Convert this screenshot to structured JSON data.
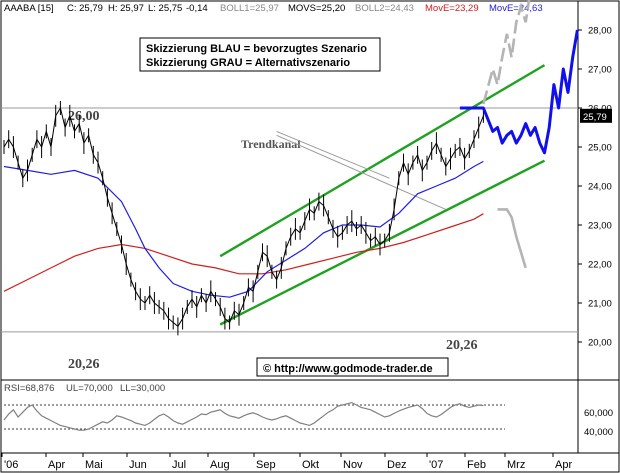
{
  "header": {
    "symbol": "AAABA [15]",
    "c": "C: 25,79",
    "h": "H: 25,97",
    "l": "L: 25,75",
    "chg": "-0,14",
    "boll1": "BOLL1=25,97",
    "movs": "MOVS=25,20",
    "boll2": "BOLL2=24,43",
    "move1": "MovE=23,29",
    "move2": "MovE=24,63"
  },
  "legend": {
    "line1": "Skizzierung BLAU = bevorzugtes Szenario",
    "line2": "Skizzierung GRAU = Alternativszenario"
  },
  "annotations": {
    "level_high": "26,00",
    "level_low_left": "20,26",
    "level_low_right": "20,26",
    "trend": "Trendkanal",
    "url": "© http://www.godmode-trader.de",
    "last_price": "25,79"
  },
  "rsi": {
    "label": "RSI=68,876",
    "ul": "UL=70,000",
    "ll": "LL=30,000",
    "ticks": [
      "60,000",
      "40,000"
    ]
  },
  "colors": {
    "price": "#000000",
    "ma_blue": "#1e1ee6",
    "ma_red": "#d21e1e",
    "channel": "#1fa21f",
    "scenario_blue": "#1010ee",
    "scenario_grey": "#b4b4b4",
    "rsi_line": "#808080"
  },
  "chart_data": {
    "type": "line",
    "ylim": [
      19.75,
      28.35
    ],
    "yticks": [
      "28,00",
      "27,00",
      "26,00",
      "25,00",
      "24,00",
      "23,00",
      "22,00",
      "21,00",
      "20,00"
    ],
    "xticks": [
      "'06",
      "Apr",
      "Mai",
      "Jun",
      "Jul",
      "Aug",
      "Sep",
      "Okt",
      "Nov",
      "Dez",
      "'07",
      "Feb",
      "Mrz",
      "Apr"
    ],
    "horizontal_levels": [
      26.0,
      20.26
    ],
    "price": [
      [
        0,
        25.0
      ],
      [
        1,
        25.2
      ],
      [
        2,
        25.0
      ],
      [
        3,
        24.6
      ],
      [
        4,
        24.2
      ],
      [
        5,
        24.4
      ],
      [
        6,
        24.8
      ],
      [
        7,
        25.2
      ],
      [
        8,
        25.0
      ],
      [
        9,
        25.4
      ],
      [
        10,
        25.0
      ],
      [
        11,
        25.8
      ],
      [
        12,
        26.0
      ],
      [
        13,
        25.5
      ],
      [
        14,
        25.8
      ],
      [
        15,
        25.4
      ],
      [
        16,
        25.6
      ],
      [
        17,
        25.1
      ],
      [
        18,
        25.3
      ],
      [
        19,
        24.8
      ],
      [
        20,
        24.6
      ],
      [
        21,
        24.2
      ],
      [
        22,
        23.7
      ],
      [
        23,
        23.3
      ],
      [
        24,
        22.9
      ],
      [
        25,
        22.5
      ],
      [
        26,
        22.0
      ],
      [
        27,
        21.6
      ],
      [
        28,
        21.3
      ],
      [
        29,
        21.1
      ],
      [
        30,
        21.0
      ],
      [
        31,
        21.2
      ],
      [
        32,
        21.0
      ],
      [
        33,
        20.9
      ],
      [
        34,
        20.8
      ],
      [
        35,
        20.6
      ],
      [
        36,
        20.5
      ],
      [
        37,
        20.4
      ],
      [
        38,
        20.6
      ],
      [
        39,
        20.9
      ],
      [
        40,
        21.1
      ],
      [
        41,
        20.9
      ],
      [
        42,
        21.2
      ],
      [
        43,
        21.0
      ],
      [
        44,
        21.3
      ],
      [
        45,
        21.1
      ],
      [
        46,
        20.9
      ],
      [
        47,
        20.6
      ],
      [
        48,
        20.5
      ],
      [
        49,
        20.8
      ],
      [
        50,
        20.7
      ],
      [
        51,
        21.0
      ],
      [
        52,
        21.4
      ],
      [
        53,
        21.3
      ],
      [
        54,
        21.8
      ],
      [
        55,
        22.3
      ],
      [
        56,
        22.2
      ],
      [
        57,
        21.8
      ],
      [
        58,
        21.6
      ],
      [
        59,
        21.9
      ],
      [
        60,
        22.4
      ],
      [
        61,
        22.7
      ],
      [
        62,
        22.9
      ],
      [
        63,
        22.8
      ],
      [
        64,
        23.1
      ],
      [
        65,
        23.4
      ],
      [
        66,
        23.3
      ],
      [
        67,
        23.6
      ],
      [
        68,
        23.5
      ],
      [
        69,
        23.2
      ],
      [
        70,
        22.9
      ],
      [
        71,
        22.7
      ],
      [
        72,
        22.8
      ],
      [
        73,
        23.0
      ],
      [
        74,
        23.1
      ],
      [
        75,
        22.9
      ],
      [
        76,
        23.0
      ],
      [
        77,
        22.8
      ],
      [
        78,
        22.6
      ],
      [
        79,
        22.7
      ],
      [
        80,
        22.5
      ],
      [
        81,
        22.6
      ],
      [
        82,
        22.8
      ],
      [
        83,
        23.4
      ],
      [
        84,
        24.2
      ],
      [
        85,
        24.6
      ],
      [
        86,
        24.3
      ],
      [
        87,
        24.6
      ],
      [
        88,
        24.8
      ],
      [
        89,
        24.4
      ],
      [
        90,
        24.6
      ],
      [
        91,
        24.9
      ],
      [
        92,
        25.1
      ],
      [
        93,
        24.8
      ],
      [
        94,
        24.5
      ],
      [
        95,
        24.7
      ],
      [
        96,
        24.9
      ],
      [
        97,
        25.0
      ],
      [
        98,
        24.7
      ],
      [
        99,
        24.9
      ],
      [
        100,
        25.2
      ],
      [
        101,
        25.5
      ],
      [
        102,
        25.8
      ]
    ],
    "ma_blue": [
      [
        0,
        24.5
      ],
      [
        5,
        24.4
      ],
      [
        10,
        24.3
      ],
      [
        15,
        24.4
      ],
      [
        20,
        24.2
      ],
      [
        25,
        23.6
      ],
      [
        28,
        22.9
      ],
      [
        30,
        22.4
      ],
      [
        33,
        21.9
      ],
      [
        36,
        21.5
      ],
      [
        40,
        21.3
      ],
      [
        44,
        21.2
      ],
      [
        48,
        21.15
      ],
      [
        52,
        21.3
      ],
      [
        56,
        21.8
      ],
      [
        60,
        22.1
      ],
      [
        64,
        22.4
      ],
      [
        68,
        22.8
      ],
      [
        72,
        23.0
      ],
      [
        76,
        23.0
      ],
      [
        80,
        22.95
      ],
      [
        84,
        23.3
      ],
      [
        88,
        23.8
      ],
      [
        92,
        24.0
      ],
      [
        96,
        24.2
      ],
      [
        100,
        24.5
      ],
      [
        102,
        24.63
      ]
    ],
    "ma_red": [
      [
        0,
        21.3
      ],
      [
        5,
        21.6
      ],
      [
        10,
        21.9
      ],
      [
        15,
        22.2
      ],
      [
        20,
        22.4
      ],
      [
        25,
        22.5
      ],
      [
        30,
        22.4
      ],
      [
        35,
        22.2
      ],
      [
        40,
        22.0
      ],
      [
        45,
        21.9
      ],
      [
        50,
        21.75
      ],
      [
        55,
        21.75
      ],
      [
        60,
        21.85
      ],
      [
        65,
        22.0
      ],
      [
        70,
        22.15
      ],
      [
        75,
        22.3
      ],
      [
        80,
        22.4
      ],
      [
        85,
        22.55
      ],
      [
        90,
        22.75
      ],
      [
        95,
        22.95
      ],
      [
        100,
        23.15
      ],
      [
        102,
        23.29
      ]
    ],
    "channel_upper": [
      [
        46,
        22.2
      ],
      [
        115,
        27.1
      ]
    ],
    "channel_lower": [
      [
        46,
        20.45
      ],
      [
        115,
        24.65
      ]
    ],
    "trend_pointer_lines": [
      [
        [
          58,
          25.4
        ],
        [
          82,
          24.2
        ]
      ],
      [
        [
          58,
          25.3
        ],
        [
          94,
          23.4
        ]
      ]
    ],
    "scenario_blue": [
      [
        97,
        26.0
      ],
      [
        102,
        26.0
      ],
      [
        104,
        25.4
      ],
      [
        105,
        25.5
      ],
      [
        106,
        25.1
      ],
      [
        107,
        25.3
      ],
      [
        108,
        25.4
      ],
      [
        109,
        25.1
      ],
      [
        110,
        25.3
      ],
      [
        111,
        25.6
      ],
      [
        112,
        25.3
      ],
      [
        113,
        25.5
      ],
      [
        114,
        25.1
      ],
      [
        115,
        24.85
      ],
      [
        116,
        25.5
      ],
      [
        117,
        26.6
      ],
      [
        118,
        26.0
      ],
      [
        119,
        27.0
      ],
      [
        120,
        26.4
      ],
      [
        121,
        27.3
      ],
      [
        122,
        28.0
      ]
    ],
    "scenario_grey_up": [
      [
        102,
        26.1
      ],
      [
        104,
        27.0
      ],
      [
        105,
        26.6
      ],
      [
        106,
        27.3
      ],
      [
        107,
        27.9
      ],
      [
        108,
        27.3
      ],
      [
        109,
        28.2
      ],
      [
        110,
        28.6
      ],
      [
        111,
        28.2
      ],
      [
        112,
        29.0
      ]
    ],
    "scenario_grey_down": [
      [
        105,
        23.4
      ],
      [
        107,
        23.4
      ],
      [
        108,
        23.2
      ],
      [
        109,
        22.7
      ],
      [
        110,
        22.3
      ],
      [
        111,
        21.9
      ]
    ],
    "rsi_values": [
      45,
      55,
      62,
      50,
      58,
      66,
      70,
      60,
      52,
      48,
      44,
      40,
      36,
      34,
      32,
      30,
      28,
      28,
      30,
      34,
      38,
      42,
      40,
      45,
      52,
      50,
      47,
      44,
      40,
      38,
      36,
      40,
      46,
      52,
      55,
      50,
      44,
      40,
      38,
      42,
      46,
      50,
      55,
      54,
      58,
      60,
      62,
      56,
      52,
      50,
      48,
      52,
      55,
      57,
      54,
      50,
      47,
      45,
      47,
      50,
      52,
      48,
      44,
      40,
      38,
      36,
      40,
      46,
      52,
      58,
      62,
      68,
      70,
      72,
      74,
      70,
      66,
      64,
      62,
      58,
      54,
      50,
      52,
      56,
      60,
      63,
      66,
      68,
      70,
      64,
      56,
      52,
      50,
      54,
      60,
      66,
      70,
      72,
      68,
      66,
      68,
      70,
      69
    ]
  }
}
